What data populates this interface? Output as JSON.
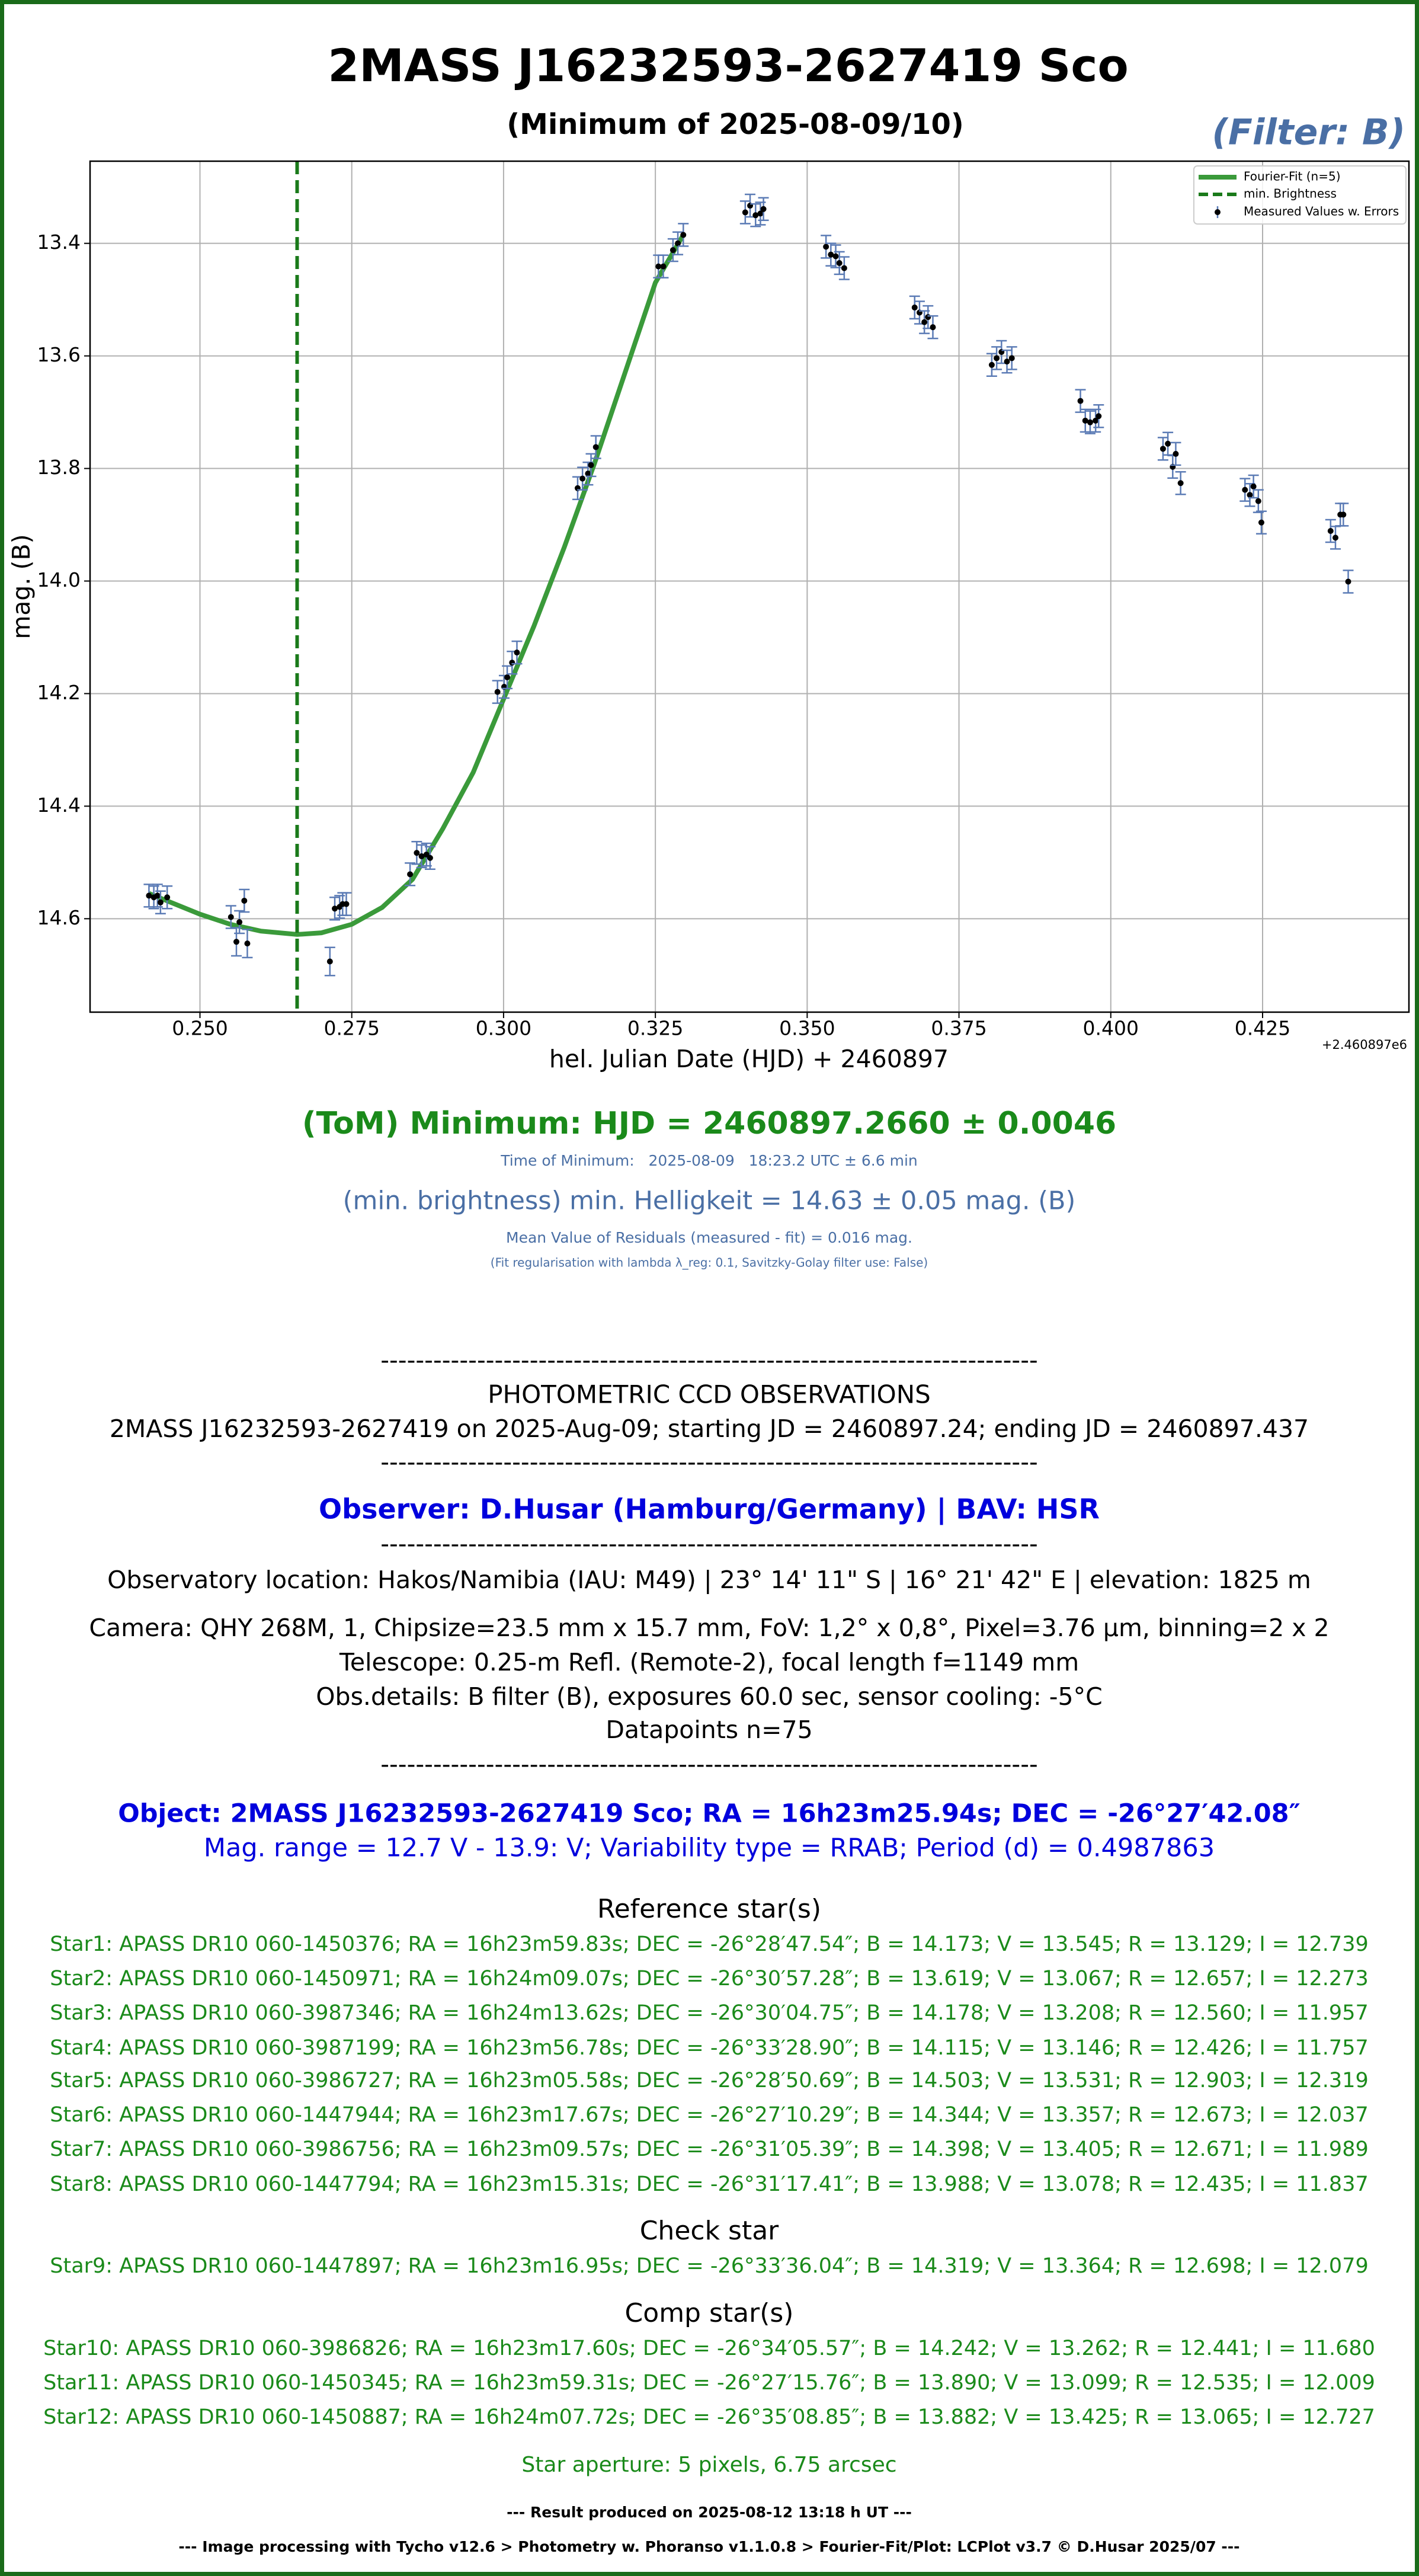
{
  "chart_data": {
    "type": "scatter",
    "title": "2MASS J16232593-2627419 Sco",
    "subtitle": "(Minimum of 2025-08-09/10)",
    "filter_label": "(Filter: B)",
    "x_label": "hel. Julian Date (HJD) + 2460897",
    "x_offset_label": "+2.460897e6",
    "y_label": "mag. (B)",
    "xlim": [
      0.2319,
      0.4491
    ],
    "ylim": [
      14.766,
      13.254
    ],
    "xticks": [
      {
        "value": 0.25,
        "label": "0.250"
      },
      {
        "value": 0.275,
        "label": "0.275"
      },
      {
        "value": 0.3,
        "label": "0.300"
      },
      {
        "value": 0.325,
        "label": "0.325"
      },
      {
        "value": 0.35,
        "label": "0.350"
      },
      {
        "value": 0.375,
        "label": "0.375"
      },
      {
        "value": 0.4,
        "label": "0.400"
      },
      {
        "value": 0.425,
        "label": "0.425"
      }
    ],
    "yticks": [
      13.4,
      13.6,
      13.8,
      {
        "value": 14,
        "label": "14.0"
      },
      14.2,
      14.4,
      14.6
    ],
    "grid": true,
    "legend": "upper right",
    "series": [
      {
        "name": "Fourier-Fit (n=5)",
        "color": "#3a9a3a",
        "x": [
          0.2416,
          0.245,
          0.25,
          0.255,
          0.26,
          0.266,
          0.27,
          0.275,
          0.28,
          0.285,
          0.29,
          0.295,
          0.3,
          0.305,
          0.31,
          0.315,
          0.32,
          0.325,
          0.3296
        ],
        "values": [
          14.555,
          14.57,
          14.592,
          14.61,
          14.622,
          14.628,
          14.625,
          14.61,
          14.58,
          14.53,
          14.44,
          14.34,
          14.21,
          14.08,
          13.94,
          13.79,
          13.63,
          13.47,
          13.385
        ]
      },
      {
        "name": "min. Brightness",
        "color": "#1a7a1a",
        "x": 0.266
      },
      {
        "name": "Measured Values w. Errors",
        "color": "#000000",
        "error_color": "#5b7bb5",
        "x": [
          0.2416,
          0.2424,
          0.243,
          0.2435,
          0.2446,
          0.2551,
          0.256,
          0.2565,
          0.2573,
          0.2578,
          0.2714,
          0.2722,
          0.273,
          0.2735,
          0.2741,
          0.2846,
          0.2857,
          0.2865,
          0.2873,
          0.2879,
          0.299,
          0.3001,
          0.3006,
          0.3014,
          0.3022,
          0.3122,
          0.313,
          0.3139,
          0.3144,
          0.3152,
          0.3255,
          0.3263,
          0.3279,
          0.3287,
          0.3296,
          0.3398,
          0.3406,
          0.3415,
          0.3423,
          0.3428,
          0.3531,
          0.3539,
          0.3547,
          0.3553,
          0.3561,
          0.3677,
          0.3685,
          0.3693,
          0.3699,
          0.3707,
          0.3804,
          0.3812,
          0.382,
          0.3829,
          0.3837,
          0.395,
          0.3958,
          0.3966,
          0.3975,
          0.398,
          0.4086,
          0.4094,
          0.4102,
          0.4107,
          0.4115,
          0.4221,
          0.4229,
          0.4235,
          0.4243,
          0.4248,
          0.4362,
          0.437,
          0.4378,
          0.4383,
          0.4391
        ],
        "values": [
          14.559,
          14.562,
          14.559,
          14.571,
          14.562,
          14.597,
          14.641,
          14.606,
          14.568,
          14.644,
          14.676,
          14.582,
          14.579,
          14.574,
          14.574,
          14.521,
          14.483,
          14.489,
          14.486,
          14.492,
          14.197,
          14.188,
          14.171,
          14.145,
          14.127,
          13.835,
          13.818,
          13.809,
          13.794,
          13.762,
          13.441,
          13.441,
          13.412,
          13.4,
          13.385,
          13.345,
          13.333,
          13.35,
          13.347,
          13.339,
          13.406,
          13.42,
          13.423,
          13.435,
          13.444,
          13.514,
          13.523,
          13.54,
          13.531,
          13.549,
          13.616,
          13.604,
          13.593,
          13.61,
          13.604,
          13.68,
          13.715,
          13.718,
          13.715,
          13.707,
          13.765,
          13.756,
          13.797,
          13.774,
          13.826,
          13.838,
          13.847,
          13.832,
          13.858,
          13.896,
          13.911,
          13.923,
          13.882,
          13.882,
          14.001
        ],
        "errors": [
          0.02,
          0.02,
          0.02,
          0.02,
          0.02,
          0.02,
          0.025,
          0.02,
          0.02,
          0.025,
          0.025,
          0.02,
          0.02,
          0.02,
          0.02,
          0.02,
          0.02,
          0.02,
          0.02,
          0.02,
          0.02,
          0.02,
          0.02,
          0.02,
          0.02,
          0.02,
          0.02,
          0.02,
          0.02,
          0.02,
          0.02,
          0.02,
          0.02,
          0.02,
          0.02,
          0.02,
          0.02,
          0.02,
          0.02,
          0.02,
          0.02,
          0.02,
          0.02,
          0.02,
          0.02,
          0.02,
          0.02,
          0.02,
          0.02,
          0.02,
          0.02,
          0.02,
          0.02,
          0.02,
          0.02,
          0.02,
          0.02,
          0.02,
          0.02,
          0.02,
          0.02,
          0.02,
          0.02,
          0.02,
          0.02,
          0.02,
          0.02,
          0.02,
          0.02,
          0.02,
          0.02,
          0.02,
          0.02,
          0.02,
          0.02
        ]
      }
    ]
  },
  "report": {
    "lines": [
      "(ToM) Minimum: HJD = 2460897.2660 ± 0.0046",
      "Time of Minimum:   2025-08-09   18:23.2 UTC ± 6.6 min",
      "(min. brightness) min. Helligkeit = 14.63 ± 0.05 mag. (B)",
      "Mean Value of Residuals (measured - fit) = 0.016 mag.",
      "(Fit regularisation with lambda λ_reg: 0.1, Savitzky-Golay filter use: False)",
      "---------------------------------------------------------------------------",
      "PHOTOMETRIC CCD OBSERVATIONS",
      "2MASS J16232593-2627419 on 2025-Aug-09; starting JD = 2460897.24; ending JD = 2460897.437",
      "---------------------------------------------------------------------------",
      "Observer: D.Husar (Hamburg/Germany) | BAV: HSR",
      "---------------------------------------------------------------------------",
      "Observatory location: Hakos/Namibia (IAU: M49) | 23° 14' 11\" S | 16° 21' 42\" E | elevation: 1825 m",
      "Camera: QHY 268M, 1, Chipsize=23.5 mm x 15.7 mm, FoV: 1,2° x 0,8°, Pixel=3.76 µm, binning=2 x 2",
      "Telescope: 0.25-m Refl. (Remote-2), focal length f=1149 mm",
      "Obs.details: B filter (B), exposures 60.0 sec, sensor cooling: -5°C",
      "Datapoints n=75",
      "---------------------------------------------------------------------------",
      "Object: 2MASS J16232593-2627419 Sco; RA = 16h23m25.94s; DEC = -26°27′42.08″",
      "Mag. range = 12.7 V - 13.9: V; Variability type = RRAB; Period (d) = 0.4987863",
      "Reference star(s)",
      "Star1: APASS DR10 060-1450376; RA = 16h23m59.83s; DEC = -26°28′47.54″; B = 14.173; V = 13.545; R = 13.129; I = 12.739",
      "Star2: APASS DR10 060-1450971; RA = 16h24m09.07s; DEC = -26°30′57.28″; B = 13.619; V = 13.067; R = 12.657; I = 12.273",
      "Star3: APASS DR10 060-3987346; RA = 16h24m13.62s; DEC = -26°30′04.75″; B = 14.178; V = 13.208; R = 12.560; I = 11.957",
      "Star4: APASS DR10 060-3987199; RA = 16h23m56.78s; DEC = -26°33′28.90″; B = 14.115; V = 13.146; R = 12.426; I = 11.757",
      "Star5: APASS DR10 060-3986727; RA = 16h23m05.58s; DEC = -26°28′50.69″; B = 14.503; V = 13.531; R = 12.903; I = 12.319",
      "Star6: APASS DR10 060-1447944; RA = 16h23m17.67s; DEC = -26°27′10.29″; B = 14.344; V = 13.357; R = 12.673; I = 12.037",
      "Star7: APASS DR10 060-3986756; RA = 16h23m09.57s; DEC = -26°31′05.39″; B = 14.398; V = 13.405; R = 12.671; I = 11.989",
      "Star8: APASS DR10 060-1447794; RA = 16h23m15.31s; DEC = -26°31′17.41″; B = 13.988; V = 13.078; R = 12.435; I = 11.837",
      "Check star",
      "Star9: APASS DR10 060-1447897; RA = 16h23m16.95s; DEC = -26°33′36.04″; B = 14.319; V = 13.364; R = 12.698; I = 12.079",
      "Comp star(s)",
      "Star10: APASS DR10 060-3986826; RA = 16h23m17.60s; DEC = -26°34′05.57″; B = 14.242; V = 13.262; R = 12.441; I = 11.680",
      "Star11: APASS DR10 060-1450345; RA = 16h23m59.31s; DEC = -26°27′15.76″; B = 13.890; V = 13.099; R = 12.535; I = 12.009",
      "Star12: APASS DR10 060-1450887; RA = 16h24m07.72s; DEC = -26°35′08.85″; B = 13.882; V = 13.425; R = 13.065; I = 12.727",
      "Star aperture: 5 pixels, 6.75 arcsec",
      "--- Result produced on 2025-08-12 13:18 h UT ---",
      "--- Image processing with Tycho v12.6 > Photometry w. Phoranso v1.1.0.8 > Fourier-Fit/Plot: LCPlot v3.7 © D.Husar 2025/07 ---"
    ]
  }
}
